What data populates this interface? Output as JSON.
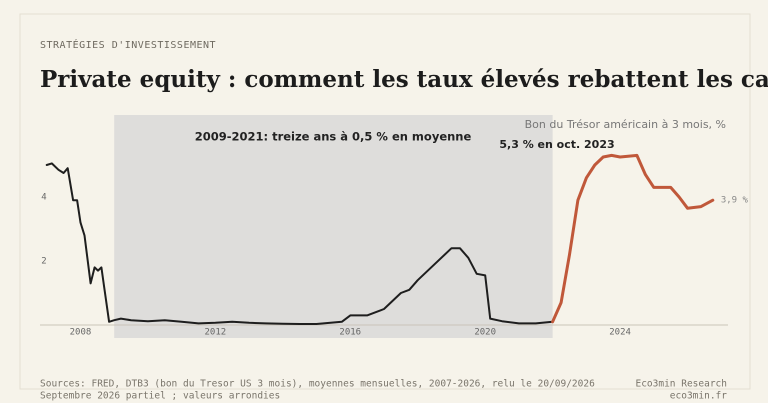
{
  "header": {
    "kicker": "STRATÉGIES D'INVESTISSEMENT",
    "brand": "Eco3min Research",
    "site": "eco3min.fr"
  },
  "footer": {
    "line1": "Sources: FRED, DTB3 (bon du Tresor US 3 mois), moyennes mensuelles, 2007-2026, relu le 20/09/2026",
    "line2": "Septembre 2026 partiel ; valeurs arrondies"
  },
  "chart_data": {
    "type": "line",
    "title": "Private equity : comment les taux élevés rebattent les cartes",
    "y_label": "Bon du Trésor américain à 3 mois, %",
    "annotations": {
      "period": "2009-2021: treize ans à 0,5 % en moyenne",
      "peak": "5,3 % en oct. 2023"
    },
    "shade": [
      2009,
      2022
    ],
    "xlim": [
      2006.8,
      2027.2
    ],
    "xticks": [
      2008,
      2012,
      2016,
      2020,
      2024
    ],
    "ylim": [
      0,
      6.5
    ],
    "yticks": [
      2,
      4
    ],
    "series": [
      {
        "color": "#1e1e1e",
        "x": [
          2007.0,
          2007.15,
          2007.35,
          2007.5,
          2007.62,
          2007.78,
          2007.9,
          2008.0,
          2008.12,
          2008.3,
          2008.42,
          2008.52,
          2008.62,
          2008.7,
          2008.85,
          2009.0,
          2009.2,
          2009.5,
          2010.0,
          2010.5,
          2011.0,
          2011.5,
          2012.0,
          2012.5,
          2013.0,
          2013.5,
          2014.0,
          2014.5,
          2015.0,
          2015.75,
          2016.0,
          2016.5,
          2017.0,
          2017.5,
          2017.75,
          2018.0,
          2018.5,
          2019.0,
          2019.25,
          2019.5,
          2019.75,
          2020.0,
          2020.15,
          2020.5,
          2021.0,
          2021.5,
          2022.0
        ],
        "values": [
          5.0,
          5.05,
          4.85,
          4.75,
          4.9,
          3.9,
          3.9,
          3.2,
          2.8,
          1.3,
          1.8,
          1.7,
          1.8,
          1.2,
          0.1,
          0.15,
          0.2,
          0.15,
          0.12,
          0.15,
          0.1,
          0.05,
          0.07,
          0.1,
          0.07,
          0.05,
          0.04,
          0.03,
          0.03,
          0.1,
          0.3,
          0.3,
          0.5,
          1.0,
          1.1,
          1.4,
          1.9,
          2.4,
          2.4,
          2.1,
          1.6,
          1.55,
          0.2,
          0.12,
          0.05,
          0.05,
          0.1
        ]
      },
      {
        "color": "#c0583a",
        "x": [
          2022.0,
          2022.25,
          2022.5,
          2022.75,
          2023.0,
          2023.25,
          2023.5,
          2023.75,
          2024.0,
          2024.5,
          2024.75,
          2025.0,
          2025.5,
          2025.75,
          2026.0,
          2026.4,
          2026.75
        ],
        "values": [
          0.1,
          0.7,
          2.2,
          3.9,
          4.6,
          5.0,
          5.25,
          5.3,
          5.25,
          5.3,
          4.7,
          4.3,
          4.3,
          4.0,
          3.65,
          3.7,
          3.9
        ],
        "value_labels": [
          null,
          null,
          null,
          null,
          null,
          null,
          null,
          null,
          null,
          null,
          null,
          null,
          null,
          null,
          null,
          null,
          "3,9 %"
        ]
      }
    ]
  }
}
